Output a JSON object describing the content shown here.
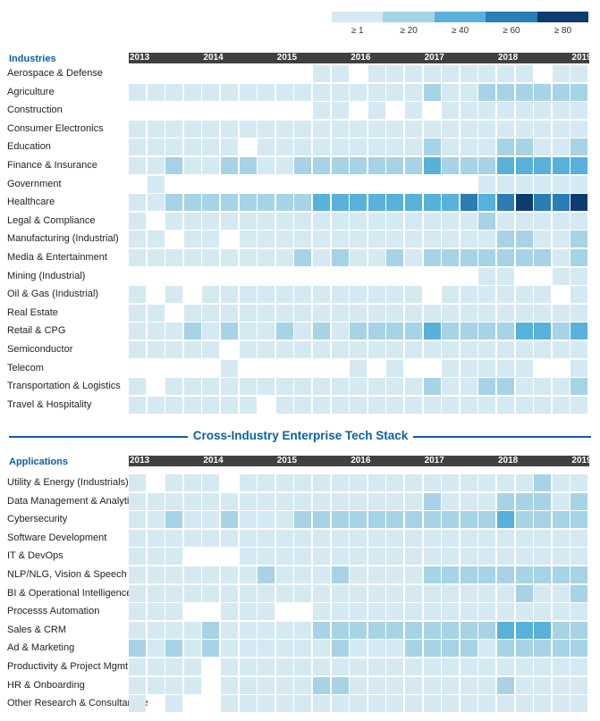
{
  "legend": {
    "items": [
      {
        "label": "≥ 1",
        "color": "#d5e9f2"
      },
      {
        "label": "≥ 20",
        "color": "#a6d3e6"
      },
      {
        "label": "≥ 40",
        "color": "#57b1da"
      },
      {
        "label": "≥ 60",
        "color": "#2a7db5"
      },
      {
        "label": "≥ 80",
        "color": "#0c3c70"
      }
    ]
  },
  "divider_title": "Cross-Industry Enterprise Tech Stack",
  "chart_data": [
    {
      "type": "heatmap",
      "title": "Industries",
      "years": [
        "2013",
        "2014",
        "2015",
        "2016",
        "2017",
        "2018",
        "2019"
      ],
      "row_labels": [
        "Aerospace & Defense",
        "Agriculture",
        "Construction",
        "Consumer Electronics",
        "Education",
        "Finance & Insurance",
        "Government",
        "Healthcare",
        "Legal & Compliance",
        "Manufacturing (Industrial)",
        "Media & Entertainment",
        "Mining (Industrial)",
        "Oil & Gas (Industrial)",
        "Real Estate",
        "Retail & CPG",
        "Semiconductor",
        "Telecom",
        "Transportation & Logistics",
        "Travel & Hospitality"
      ],
      "values": [
        [
          0,
          0,
          0,
          0,
          0,
          0,
          0,
          0,
          0,
          0,
          1,
          1,
          0,
          1,
          1,
          1,
          1,
          1,
          1,
          1,
          1,
          1,
          0,
          1,
          1
        ],
        [
          1,
          1,
          1,
          1,
          1,
          1,
          1,
          1,
          1,
          1,
          1,
          1,
          1,
          1,
          1,
          1,
          2,
          1,
          1,
          2,
          2,
          2,
          2,
          2,
          2
        ],
        [
          0,
          0,
          0,
          0,
          0,
          0,
          0,
          0,
          0,
          0,
          1,
          1,
          0,
          1,
          0,
          1,
          0,
          1,
          1,
          1,
          1,
          1,
          1,
          1,
          1
        ],
        [
          1,
          1,
          1,
          1,
          1,
          1,
          1,
          1,
          1,
          1,
          1,
          1,
          1,
          1,
          1,
          1,
          1,
          1,
          1,
          1,
          1,
          1,
          1,
          1,
          1
        ],
        [
          1,
          1,
          1,
          1,
          1,
          1,
          0,
          1,
          1,
          1,
          1,
          1,
          1,
          1,
          1,
          1,
          2,
          1,
          1,
          1,
          2,
          2,
          1,
          1,
          2
        ],
        [
          1,
          1,
          2,
          1,
          1,
          2,
          2,
          1,
          1,
          2,
          2,
          2,
          2,
          2,
          2,
          2,
          3,
          2,
          2,
          2,
          3,
          3,
          3,
          3,
          3
        ],
        [
          0,
          1,
          0,
          0,
          0,
          0,
          0,
          0,
          0,
          0,
          0,
          0,
          0,
          0,
          0,
          0,
          0,
          0,
          0,
          1,
          1,
          1,
          1,
          1,
          1
        ],
        [
          1,
          1,
          2,
          2,
          2,
          2,
          2,
          2,
          2,
          2,
          3,
          3,
          3,
          3,
          3,
          3,
          3,
          3,
          4,
          3,
          4,
          5,
          4,
          4,
          5
        ],
        [
          1,
          0,
          1,
          1,
          1,
          1,
          1,
          1,
          1,
          1,
          1,
          1,
          1,
          1,
          1,
          1,
          1,
          1,
          1,
          2,
          1,
          1,
          1,
          1,
          1
        ],
        [
          1,
          1,
          0,
          1,
          1,
          0,
          1,
          1,
          1,
          1,
          1,
          1,
          1,
          1,
          1,
          1,
          1,
          1,
          1,
          1,
          2,
          2,
          1,
          1,
          2
        ],
        [
          1,
          1,
          1,
          1,
          1,
          1,
          1,
          1,
          1,
          2,
          1,
          2,
          1,
          1,
          2,
          1,
          2,
          2,
          2,
          2,
          2,
          2,
          2,
          1,
          2
        ],
        [
          0,
          0,
          0,
          0,
          0,
          0,
          0,
          0,
          0,
          0,
          0,
          0,
          0,
          0,
          0,
          0,
          0,
          0,
          0,
          1,
          1,
          0,
          0,
          1,
          1
        ],
        [
          1,
          0,
          1,
          0,
          1,
          1,
          1,
          1,
          1,
          1,
          1,
          1,
          1,
          1,
          1,
          1,
          0,
          1,
          1,
          1,
          1,
          1,
          1,
          0,
          1
        ],
        [
          1,
          1,
          0,
          1,
          1,
          1,
          1,
          1,
          1,
          1,
          1,
          1,
          1,
          1,
          1,
          1,
          1,
          1,
          1,
          1,
          1,
          1,
          1,
          1,
          1
        ],
        [
          1,
          1,
          1,
          2,
          1,
          2,
          1,
          1,
          2,
          1,
          2,
          1,
          2,
          2,
          2,
          2,
          3,
          2,
          2,
          2,
          2,
          3,
          3,
          2,
          3
        ],
        [
          1,
          1,
          1,
          1,
          1,
          0,
          1,
          1,
          1,
          1,
          1,
          1,
          1,
          1,
          1,
          1,
          1,
          1,
          1,
          1,
          1,
          1,
          1,
          1,
          1
        ],
        [
          0,
          0,
          0,
          0,
          0,
          1,
          0,
          0,
          0,
          0,
          0,
          0,
          1,
          0,
          1,
          0,
          0,
          1,
          1,
          1,
          1,
          1,
          0,
          0,
          1
        ],
        [
          1,
          0,
          1,
          1,
          1,
          1,
          1,
          1,
          1,
          1,
          1,
          1,
          1,
          1,
          1,
          1,
          2,
          1,
          1,
          2,
          2,
          1,
          1,
          1,
          2
        ],
        [
          1,
          1,
          1,
          1,
          1,
          1,
          1,
          0,
          1,
          1,
          1,
          1,
          1,
          1,
          1,
          1,
          1,
          1,
          1,
          1,
          1,
          1,
          1,
          1,
          1
        ]
      ]
    },
    {
      "type": "heatmap",
      "title": "Applications",
      "years": [
        "2013",
        "2014",
        "2015",
        "2016",
        "2017",
        "2018",
        "2019"
      ],
      "row_labels": [
        "Utility & Energy (Industrials)",
        "Data Management & Analytics",
        "Cybersecurity",
        "Software Development",
        "IT & DevOps",
        "NLP/NLG, Vision & Speech",
        "BI & Operational Intelligence",
        "Processs Automation",
        "Sales & CRM",
        "Ad & Marketing",
        "Productivity & Project Mgmt.",
        "HR & Onboarding",
        "Other Research & Consultancies"
      ],
      "values": [
        [
          1,
          0,
          1,
          1,
          1,
          0,
          1,
          1,
          1,
          1,
          1,
          1,
          1,
          1,
          1,
          1,
          1,
          1,
          1,
          1,
          1,
          1,
          2,
          1,
          1
        ],
        [
          1,
          1,
          1,
          1,
          1,
          1,
          1,
          1,
          1,
          1,
          1,
          1,
          1,
          1,
          1,
          1,
          2,
          1,
          1,
          1,
          2,
          2,
          2,
          1,
          2
        ],
        [
          1,
          1,
          2,
          1,
          1,
          2,
          1,
          1,
          1,
          2,
          2,
          2,
          2,
          2,
          2,
          2,
          2,
          2,
          2,
          2,
          3,
          2,
          2,
          2,
          2
        ],
        [
          1,
          1,
          1,
          1,
          1,
          1,
          1,
          1,
          1,
          1,
          1,
          1,
          1,
          1,
          1,
          1,
          1,
          1,
          1,
          1,
          1,
          1,
          1,
          1,
          1
        ],
        [
          1,
          1,
          1,
          0,
          0,
          0,
          1,
          1,
          1,
          1,
          1,
          1,
          1,
          1,
          1,
          1,
          1,
          1,
          1,
          1,
          1,
          1,
          1,
          1,
          1
        ],
        [
          1,
          1,
          1,
          1,
          1,
          1,
          1,
          2,
          1,
          1,
          1,
          2,
          1,
          1,
          1,
          1,
          2,
          2,
          2,
          2,
          2,
          2,
          2,
          2,
          2
        ],
        [
          1,
          1,
          1,
          1,
          1,
          1,
          1,
          1,
          1,
          1,
          1,
          1,
          1,
          1,
          1,
          1,
          1,
          1,
          1,
          1,
          1,
          2,
          1,
          1,
          2
        ],
        [
          1,
          1,
          1,
          0,
          0,
          1,
          1,
          1,
          0,
          0,
          1,
          1,
          1,
          1,
          1,
          1,
          1,
          1,
          1,
          1,
          1,
          1,
          1,
          1,
          1
        ],
        [
          1,
          1,
          1,
          1,
          2,
          1,
          1,
          1,
          1,
          1,
          2,
          2,
          2,
          2,
          2,
          2,
          2,
          2,
          2,
          2,
          3,
          3,
          3,
          2,
          2
        ],
        [
          2,
          1,
          2,
          1,
          2,
          1,
          1,
          1,
          1,
          1,
          1,
          2,
          1,
          1,
          1,
          2,
          2,
          2,
          2,
          1,
          2,
          2,
          2,
          2,
          2
        ],
        [
          1,
          1,
          1,
          1,
          0,
          1,
          1,
          1,
          1,
          1,
          1,
          1,
          1,
          1,
          1,
          1,
          1,
          1,
          1,
          1,
          1,
          1,
          1,
          1,
          1
        ],
        [
          1,
          1,
          1,
          1,
          0,
          1,
          1,
          1,
          1,
          1,
          2,
          2,
          1,
          1,
          1,
          1,
          1,
          1,
          1,
          1,
          2,
          1,
          1,
          1,
          1
        ],
        [
          1,
          0,
          1,
          0,
          0,
          1,
          1,
          1,
          1,
          1,
          1,
          1,
          1,
          1,
          1,
          1,
          1,
          1,
          1,
          1,
          1,
          1,
          1,
          1,
          1
        ]
      ]
    }
  ]
}
